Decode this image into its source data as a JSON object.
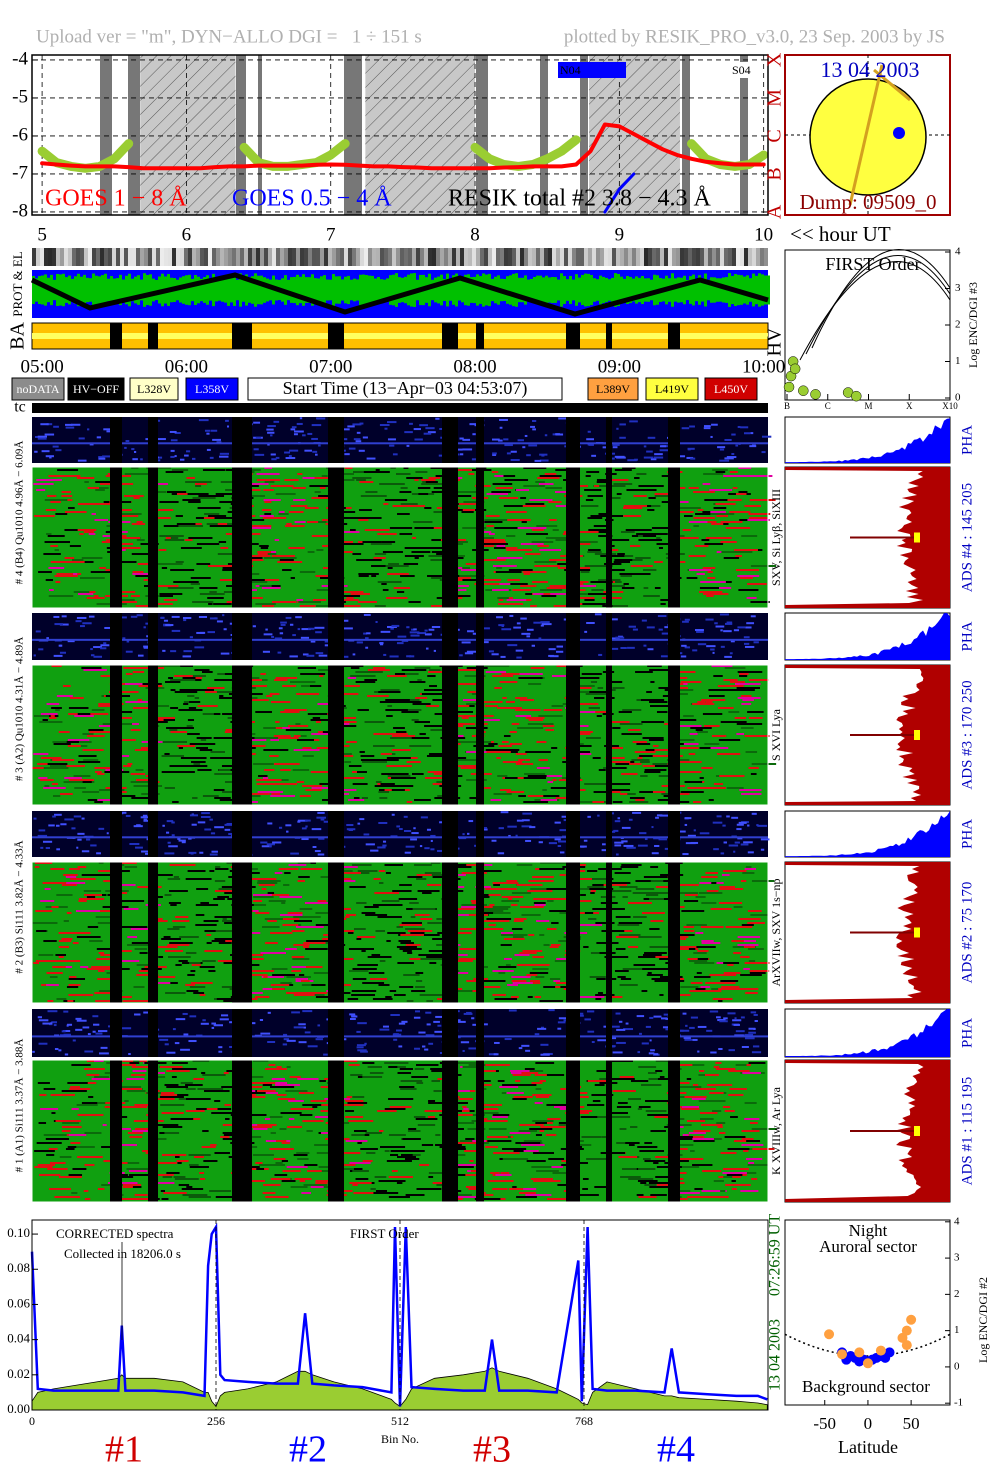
{
  "header": {
    "left": "Upload ver = \"m\", DYN−ALLO DGI =   1 ÷ 151 s",
    "right": "plotted by RESIK_PRO_v3.0, 23 Sep. 2003 by JS"
  },
  "sun": {
    "date": "13 04 2003",
    "dump": "Dump: 09509_0"
  },
  "strips": {
    "prot": "PROT & EL",
    "ba": "BA",
    "tc": "tc"
  },
  "buttons": [
    {
      "label": "noDATA",
      "color": "#8c8c8c"
    },
    {
      "label": "HV−OFF",
      "color": "#000000"
    },
    {
      "label": "L328V",
      "color": "#ffffc8"
    },
    {
      "label": "L358V",
      "color": "#0000ff"
    },
    {
      "label": "Start Time (13−Apr−03 04:53:07)",
      "color": "#ffffff"
    },
    {
      "label": "L389V",
      "color": "#ffa040"
    },
    {
      "label": "L419V",
      "color": "#ffff40"
    },
    {
      "label": "L450V",
      "color": "#d00000"
    }
  ],
  "channels": [
    {
      "label": "# 4 (B4) Qu1010 4.96Å − 6.09Å",
      "lines": "SXV, Si Lyβ, SiXIII",
      "pha": "PHA",
      "ads": "ADS #4 :  145 205"
    },
    {
      "label": "# 3 (A2) Qu1010 4.31Å − 4.89Å",
      "lines": "S XVI Lya",
      "pha": "PHA",
      "ads": "ADS #3 :  170 250"
    },
    {
      "label": "# 2 (B3) Si111 3.82Å − 4.33Å",
      "lines": "ArXVIIw, SXV 1s−np",
      "pha": "PHA",
      "ads": "ADS #2 :  75 170"
    },
    {
      "label": "# 1 (A1) Si111 3.37Å − 3.88Å",
      "lines": "K XVIIIw, Ar Lya",
      "pha": "PHA",
      "ads": "ADS #1 :  115 195"
    }
  ],
  "chart_data": [
    {
      "type": "line",
      "xlim": [
        4.93,
        10.03
      ],
      "ylim": [
        -8.08,
        -3.87
      ],
      "yticks": [
        -4,
        -5,
        -6,
        -7,
        -8
      ],
      "y2lim": [
        -8.08,
        -3.87
      ],
      "y2ticks": [
        {
          "value": -4,
          "label": "X"
        },
        {
          "value": -5,
          "label": "M"
        },
        {
          "value": -6,
          "label": "C"
        },
        {
          "value": -7,
          "label": "B"
        },
        {
          "value": -8,
          "label": "A"
        }
      ],
      "xticks": [
        5,
        6,
        7,
        8,
        9,
        10
      ],
      "x_label": "<< hour UT",
      "x2ticks": [
        {
          "value": 5,
          "label": "05:00"
        },
        {
          "value": 6,
          "label": "06:00"
        },
        {
          "value": 7,
          "label": "07:00"
        },
        {
          "value": 8,
          "label": "08:00"
        },
        {
          "value": 9,
          "label": "09:00"
        },
        {
          "value": 10,
          "label": "10:00"
        }
      ],
      "grid": true,
      "shaded": [
        [
          5.68,
          6.34
        ],
        [
          7.24,
          8.0
        ],
        [
          8.79,
          9.42
        ]
      ],
      "annotations": [
        "N04",
        "S04"
      ],
      "x": [
        5.0,
        5.1,
        5.2,
        5.3,
        5.4,
        5.5,
        5.6,
        5.7,
        5.8,
        5.9,
        6.0,
        6.1,
        6.2,
        6.3,
        6.4,
        6.5,
        6.6,
        6.7,
        6.8,
        6.9,
        7.0,
        7.1,
        7.2,
        7.3,
        7.4,
        7.5,
        7.6,
        7.7,
        7.8,
        7.9,
        8.0,
        8.1,
        8.2,
        8.3,
        8.4,
        8.5,
        8.6,
        8.7,
        8.8,
        8.9,
        9.0,
        9.1,
        9.2,
        9.3,
        9.4,
        9.5,
        9.6,
        9.7,
        9.8,
        9.9,
        10.0
      ],
      "series": [
        {
          "name": "GOES 1 − 8 Å",
          "color": "#ff0000",
          "values": [
            -6.72,
            -6.75,
            -6.78,
            -6.8,
            -6.8,
            -6.8,
            -6.82,
            -6.85,
            -6.85,
            -6.85,
            -6.85,
            -6.85,
            -6.82,
            -6.8,
            -6.8,
            -6.78,
            -6.78,
            -6.78,
            -6.78,
            -6.76,
            -6.75,
            -6.76,
            -6.78,
            -6.8,
            -6.8,
            -6.82,
            -6.83,
            -6.85,
            -6.85,
            -6.85,
            -6.85,
            -6.85,
            -6.83,
            -6.82,
            -6.8,
            -6.8,
            -6.8,
            -6.75,
            -6.4,
            -5.7,
            -5.75,
            -5.95,
            -6.15,
            -6.35,
            -6.5,
            -6.6,
            -6.68,
            -6.72,
            -6.75,
            -6.75,
            -6.75
          ]
        },
        {
          "name": "GOES 0.5 − 4 Å",
          "color": "#0000ff",
          "values": [
            null,
            null,
            null,
            null,
            null,
            null,
            null,
            null,
            null,
            null,
            null,
            null,
            null,
            null,
            null,
            null,
            null,
            null,
            null,
            null,
            null,
            null,
            null,
            null,
            null,
            null,
            null,
            null,
            null,
            null,
            null,
            null,
            null,
            null,
            null,
            null,
            null,
            null,
            null,
            -8.0,
            -7.4,
            -7.0,
            null,
            null,
            null,
            null,
            null,
            null,
            null,
            null,
            null
          ]
        },
        {
          "name": "RESIK total #2  3.8 − 4.3 Å",
          "color": "#9acd32",
          "label_color": "#000000",
          "values": [
            -6.4,
            -6.7,
            -6.8,
            -6.85,
            -6.8,
            -6.6,
            -6.2,
            null,
            null,
            null,
            null,
            null,
            null,
            null,
            -6.3,
            -6.7,
            -6.8,
            -6.8,
            -6.75,
            -6.7,
            -6.5,
            -6.2,
            null,
            null,
            null,
            null,
            null,
            null,
            null,
            null,
            -6.3,
            -6.6,
            -6.75,
            -6.8,
            -6.75,
            -6.6,
            -6.4,
            -6.1,
            null,
            null,
            null,
            null,
            null,
            null,
            null,
            -6.2,
            -6.6,
            -6.75,
            -6.8,
            -6.75,
            -6.5
          ]
        }
      ]
    },
    {
      "type": "scatter",
      "title": "FIRST Order",
      "side_label": "HV",
      "y_label": "Log ENC/DGI #3",
      "xlim": [
        -7,
        -3
      ],
      "xticks": [
        {
          "value": -7,
          "label": "B"
        },
        {
          "value": -6,
          "label": "C"
        },
        {
          "value": -5,
          "label": "M"
        },
        {
          "value": -4,
          "label": "X"
        },
        {
          "value": -3,
          "label": "X10"
        }
      ],
      "ylim": [
        0,
        4
      ],
      "yticks": [
        0,
        1,
        2,
        3,
        4
      ],
      "series": [
        {
          "color": "#9acd32",
          "x": [
            -6.95,
            -6.9,
            -6.85,
            -6.8,
            -6.6,
            -6.3,
            -5.5,
            -5.3
          ],
          "values": [
            0.3,
            0.6,
            1.0,
            0.8,
            0.2,
            0.1,
            0.15,
            0.05
          ]
        }
      ]
    },
    {
      "type": "line",
      "xlim": [
        0,
        1024
      ],
      "xticks": [
        0,
        256,
        512,
        768
      ],
      "x_label": "Bin No.",
      "ylim": [
        0,
        0.108
      ],
      "yticks": [
        {
          "value": 0,
          "label": "0.00"
        },
        {
          "value": 0.02,
          "label": "0.02"
        },
        {
          "value": 0.04,
          "label": "0.04"
        },
        {
          "value": 0.06,
          "label": "0.06"
        },
        {
          "value": 0.08,
          "label": "0.08"
        },
        {
          "value": 0.1,
          "label": "0.10"
        }
      ],
      "annotations": [
        "CORRECTED spectra",
        "Collected in 18206.0 s",
        "FIRST Order"
      ],
      "side_labels": [
        "13 04 2003",
        "07:26:59 UT"
      ],
      "sections": [
        {
          "label": "#1",
          "color": "#d00000"
        },
        {
          "label": "#2",
          "color": "#0000ff"
        },
        {
          "label": "#3",
          "color": "#d00000"
        },
        {
          "label": "#4",
          "color": "#0000ff"
        }
      ],
      "x": [
        0,
        8,
        30,
        60,
        90,
        120,
        125,
        130,
        170,
        210,
        240,
        245,
        250,
        256,
        262,
        268,
        300,
        340,
        370,
        380,
        390,
        420,
        460,
        500,
        505,
        512,
        520,
        528,
        560,
        600,
        630,
        640,
        650,
        690,
        730,
        760,
        765,
        773,
        780,
        800,
        840,
        880,
        890,
        900,
        940,
        980,
        1010,
        1023
      ],
      "series": [
        {
          "color": "#9acd32",
          "fill": true,
          "values": [
            0.005,
            0.01,
            0.012,
            0.014,
            0.016,
            0.018,
            0.02,
            0.018,
            0.018,
            0.016,
            0.01,
            0.01,
            0.005,
            0.002,
            0.008,
            0.01,
            0.012,
            0.016,
            0.022,
            0.022,
            0.02,
            0.016,
            0.012,
            0.006,
            0.004,
            0.002,
            0.006,
            0.012,
            0.018,
            0.02,
            0.022,
            0.024,
            0.022,
            0.018,
            0.012,
            0.006,
            0.004,
            0.003,
            0.01,
            0.016,
            0.012,
            0.008,
            0.008,
            0.007,
            0.006,
            0.005,
            0.004,
            0.003
          ]
        },
        {
          "color": "#0000ff",
          "fill": false,
          "values": [
            0.09,
            0.012,
            0.011,
            0.011,
            0.011,
            0.011,
            0.048,
            0.011,
            0.011,
            0.01,
            0.008,
            0.082,
            0.1,
            0.104,
            0.02,
            0.017,
            0.016,
            0.015,
            0.015,
            0.055,
            0.015,
            0.014,
            0.013,
            0.01,
            0.104,
            0.002,
            0.104,
            0.013,
            0.012,
            0.011,
            0.011,
            0.04,
            0.011,
            0.011,
            0.01,
            0.085,
            0.005,
            0.104,
            0.012,
            0.011,
            0.011,
            0.01,
            0.035,
            0.01,
            0.009,
            0.008,
            0.008,
            0.006
          ]
        }
      ]
    },
    {
      "type": "scatter",
      "xlim": [
        -96,
        95
      ],
      "xticks": [
        -50,
        0,
        50
      ],
      "x_label": "Latitude",
      "ylim": [
        -1.05,
        4.05
      ],
      "yticks": [
        -1,
        0,
        1,
        2,
        3,
        4
      ],
      "y_label": "Log ENC/DGI #2",
      "annotations": [
        "Night",
        "Auroral sector",
        "Background sector"
      ],
      "series": [
        {
          "color": "#0000ff",
          "x": [
            -30,
            -25,
            -20,
            -15,
            -10,
            -5,
            0,
            5,
            10,
            15,
            20,
            25
          ],
          "values": [
            0.4,
            0.2,
            0.3,
            0.25,
            0.15,
            0.2,
            0.15,
            0.2,
            0.25,
            0.3,
            0.25,
            0.4
          ]
        },
        {
          "color": "#ffa040",
          "x": [
            -45,
            -30,
            -10,
            0,
            15,
            40,
            45,
            50,
            45
          ],
          "values": [
            0.9,
            0.35,
            0.4,
            0.1,
            0.45,
            0.8,
            1.0,
            1.3,
            0.6
          ]
        }
      ]
    }
  ]
}
